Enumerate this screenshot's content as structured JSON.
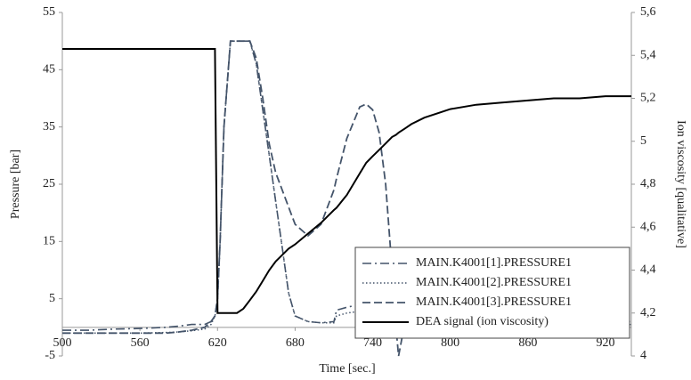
{
  "chart_data": {
    "type": "line",
    "xlabel": "Time [sec.]",
    "ylabel": "Pressure [bar]",
    "y2label": "Ion viscosity [qualitative]",
    "x": [
      500,
      520,
      540,
      560,
      580,
      590,
      600,
      610,
      615,
      618,
      620,
      622,
      625,
      630,
      635,
      640,
      645,
      650,
      655,
      660,
      665,
      670,
      675,
      680,
      690,
      700,
      710,
      712,
      720,
      730,
      735,
      740,
      745,
      750,
      755,
      758,
      760,
      765,
      770,
      780,
      800,
      820,
      840,
      860,
      880,
      900,
      920,
      940
    ],
    "series": [
      {
        "name": "MAIN.K4001[1].PRESSURE1",
        "color": "#44546a",
        "style": "dashdot",
        "values": [
          -0.5,
          -0.5,
          -0.3,
          -0.2,
          0,
          0.2,
          0.5,
          0.5,
          1,
          2,
          5,
          15,
          35,
          50,
          50,
          50,
          50,
          46,
          38,
          30,
          22,
          14,
          6,
          2,
          1,
          0.8,
          1,
          3,
          3.5,
          4,
          4.2,
          4.5,
          4.5,
          4.2,
          4,
          3.8,
          3.6,
          3.4,
          3.2,
          3,
          2.2,
          1.8,
          1.6,
          1.5,
          1.4,
          1.3,
          1.2,
          1.2
        ]
      },
      {
        "name": "MAIN.K4001[2].PRESSURE1",
        "color": "#44546a",
        "style": "dotted",
        "values": [
          -1,
          -1,
          -1,
          -1,
          -0.9,
          -0.8,
          -0.6,
          -0.3,
          0.5,
          2,
          5,
          15,
          35,
          50,
          50,
          50,
          50,
          46,
          38,
          30,
          22,
          14,
          6,
          2,
          1,
          0.8,
          0.8,
          2,
          2.5,
          2.8,
          3,
          3,
          2.9,
          2.8,
          2.5,
          2.3,
          2.2,
          2,
          1.8,
          1.5,
          1,
          0.8,
          0.7,
          0.6,
          0.5,
          0.5,
          0.5,
          0.5
        ]
      },
      {
        "name": "MAIN.K4001[3].PRESSURE1",
        "color": "#44546a",
        "style": "dashed",
        "values": [
          -1,
          -1,
          -1,
          -1,
          -1,
          -0.8,
          -0.5,
          0,
          1,
          2,
          5,
          15,
          35,
          50,
          50,
          50,
          50,
          47,
          40,
          32,
          27,
          24,
          21,
          18,
          16,
          18,
          24,
          26,
          33,
          38.5,
          39,
          38,
          34,
          25,
          10,
          0,
          -5,
          1,
          2,
          2,
          1.5,
          1.3,
          1.2,
          1.1,
          1,
          1,
          1,
          1
        ]
      },
      {
        "name": "DEA signal (ion viscosity)",
        "color": "#000000",
        "style": "solid",
        "axis": "y2",
        "values": [
          5.43,
          5.43,
          5.43,
          5.43,
          5.43,
          5.43,
          5.43,
          5.43,
          5.43,
          5.43,
          4.2,
          4.2,
          4.2,
          4.2,
          4.2,
          4.22,
          4.26,
          4.3,
          4.35,
          4.4,
          4.44,
          4.47,
          4.5,
          4.52,
          4.57,
          4.62,
          4.68,
          4.69,
          4.75,
          4.85,
          4.9,
          4.93,
          4.96,
          4.99,
          5.02,
          5.03,
          5.04,
          5.06,
          5.08,
          5.11,
          5.15,
          5.17,
          5.18,
          5.19,
          5.2,
          5.2,
          5.21,
          5.21
        ]
      }
    ],
    "xlim": [
      500,
      940
    ],
    "xticks": [
      500,
      560,
      620,
      680,
      740,
      800,
      860,
      920
    ],
    "ylim": [
      -5,
      55
    ],
    "yticks": [
      -5,
      5,
      15,
      25,
      35,
      45,
      55
    ],
    "y2lim": [
      4,
      5.6
    ],
    "y2ticks": [
      4,
      {
        "value": 4.2,
        "label": "4,2"
      },
      {
        "value": 4.4,
        "label": "4,4"
      },
      {
        "value": 4.6,
        "label": "4,6"
      },
      {
        "value": 4.8,
        "label": "4,8"
      },
      5,
      {
        "value": 5.2,
        "label": "5,2"
      },
      {
        "value": 5.4,
        "label": "5,4"
      },
      {
        "value": 5.6,
        "label": "5,6"
      }
    ],
    "legend": "lower right"
  }
}
